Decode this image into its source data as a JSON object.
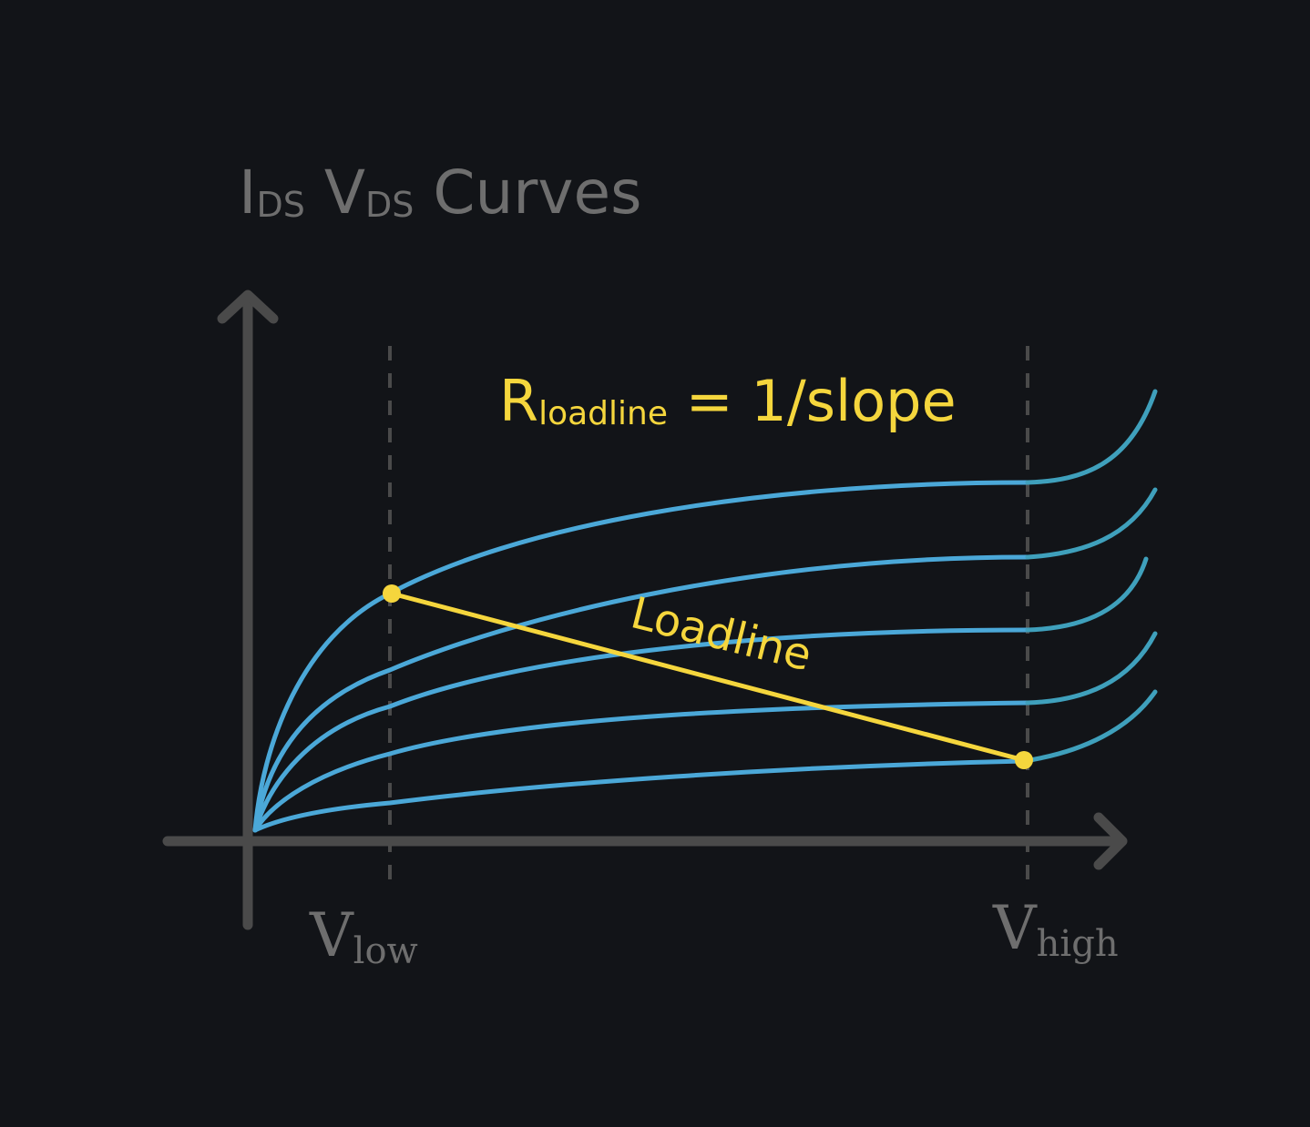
{
  "title": {
    "main_1": "I",
    "sub_1": "DS",
    "main_2": " V",
    "sub_2": "DS",
    "main_3": " Curves"
  },
  "formula": {
    "main": "R",
    "sub": "loadline",
    "rest": " = 1/slope"
  },
  "loadline_label": "Loadline",
  "x_markers": {
    "low": {
      "main": "V",
      "sub": "low"
    },
    "high": {
      "main": "V",
      "sub": "high"
    }
  },
  "colors": {
    "background": "#121418",
    "axis": "#4a4a4a",
    "curve": "#4ba8d8",
    "curve_tail": "#3fa0bc",
    "loadline": "#f5d63d",
    "text": "#6e6e6e",
    "dashed": "#4a4a4a"
  },
  "chart_data": {
    "type": "line",
    "series": [
      {
        "values": [
          [
            0,
            0
          ],
          [
            1,
            0.8
          ],
          [
            2,
            1.2
          ],
          [
            3,
            1.35
          ],
          [
            4,
            1.45
          ],
          [
            5,
            1.5
          ],
          [
            5.5,
            1.6
          ],
          [
            6,
            2.5
          ]
        ]
      },
      {
        "values": [
          [
            0,
            0
          ],
          [
            1,
            0.6
          ],
          [
            2,
            0.85
          ],
          [
            3,
            1.0
          ],
          [
            4,
            1.08
          ],
          [
            5,
            1.12
          ],
          [
            5.5,
            1.2
          ],
          [
            6,
            2.1
          ]
        ]
      },
      {
        "values": [
          [
            0,
            0
          ],
          [
            1,
            0.4
          ],
          [
            2,
            0.6
          ],
          [
            3,
            0.7
          ],
          [
            4,
            0.76
          ],
          [
            5,
            0.78
          ],
          [
            5.5,
            0.85
          ],
          [
            6,
            1.5
          ]
        ]
      },
      {
        "values": [
          [
            0,
            0
          ],
          [
            1,
            0.25
          ],
          [
            2,
            0.38
          ],
          [
            3,
            0.44
          ],
          [
            4,
            0.47
          ],
          [
            5,
            0.48
          ],
          [
            5.5,
            0.55
          ],
          [
            6,
            1.2
          ]
        ]
      },
      {
        "values": [
          [
            0,
            0
          ],
          [
            1,
            0.12
          ],
          [
            2,
            0.2
          ],
          [
            3,
            0.25
          ],
          [
            4,
            0.28
          ],
          [
            5,
            0.3
          ],
          [
            5.5,
            0.35
          ],
          [
            6,
            0.8
          ]
        ]
      }
    ],
    "loadline": {
      "start": [
        1,
        0.8
      ],
      "end": [
        5.5,
        0.3
      ]
    },
    "markers": [
      "low",
      "high"
    ]
  }
}
